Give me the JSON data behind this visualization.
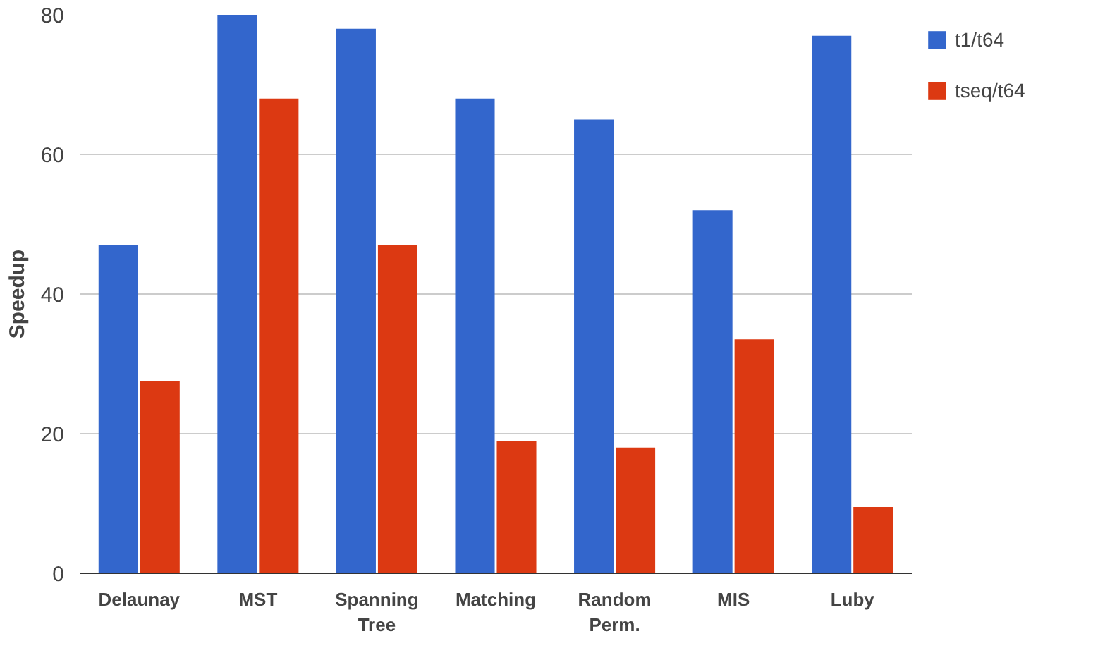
{
  "chart_data": {
    "type": "bar",
    "ylabel": "Speedup",
    "categories": [
      "Delaunay",
      "MST",
      "Spanning\nTree",
      "Matching",
      "Random\nPerm.",
      "MIS",
      "Luby"
    ],
    "series": [
      {
        "name": "t1/t64",
        "color": "#3366cc",
        "values": [
          47,
          80,
          78,
          68,
          65,
          52,
          77
        ]
      },
      {
        "name": "tseq/t64",
        "color": "#dc3912",
        "values": [
          27.5,
          68,
          47,
          19,
          18,
          33.5,
          9.5
        ]
      }
    ],
    "ylim": [
      0,
      80
    ],
    "yticks": [
      0,
      20,
      40,
      60,
      80
    ],
    "grid": "y",
    "legend": "top right"
  }
}
